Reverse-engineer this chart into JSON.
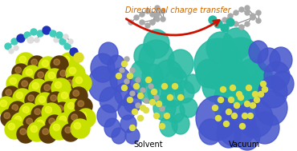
{
  "background_color": "#ffffff",
  "arrow_text": "Directional charge transfer",
  "arrow_text_color": "#cc6600",
  "arrow_color": "#cc1100",
  "label_solvent": "Solvent",
  "label_vacuum": "Vacuum",
  "label_fontsize": 7,
  "arrow_fontsize": 7,
  "figsize": [
    3.7,
    1.89
  ],
  "dpi": 100,
  "sulfur_color": "#c8e000",
  "cadmium_color": "#5a3a0a",
  "teal_color": "#22b8a0",
  "blue_color": "#4455cc",
  "gray_color": "#999999",
  "yellow_color": "#dddd44",
  "ligand_teal": "#44ccbb",
  "ligand_blue": "#2233bb",
  "ligand_white": "#dddddd"
}
